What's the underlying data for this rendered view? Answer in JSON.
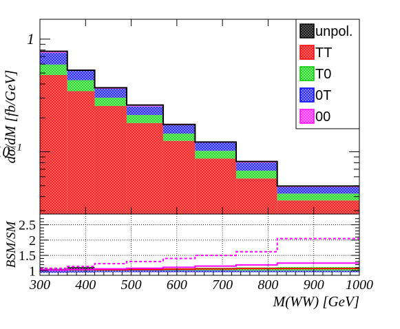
{
  "chart_data": [
    {
      "type": "bar",
      "subtype": "stacked-histogram",
      "scale": "log",
      "x_edges": [
        300,
        360,
        420,
        490,
        570,
        640,
        730,
        820,
        1000
      ],
      "ylabel": "dσ/dM [fb/GeV]",
      "ylim": [
        0.028,
        1.5
      ],
      "yticks": [
        {
          "value": 1,
          "base": "1",
          "exp": ""
        },
        {
          "value": 0.1,
          "base": "10",
          "exp": "−1"
        }
      ],
      "stack": [
        {
          "name": "TT",
          "color": "#ff0000",
          "fill": "#f17373",
          "values": [
            0.48,
            0.345,
            0.255,
            0.18,
            0.125,
            0.087,
            0.058,
            0.037
          ]
        },
        {
          "name": "T0",
          "color": "#00cc00",
          "fill": "#8ff08f",
          "values": [
            0.115,
            0.087,
            0.047,
            0.032,
            0.02,
            0.015,
            0.01,
            0.0055
          ]
        },
        {
          "name": "0T",
          "color": "#0000ff",
          "fill": "#9a9aff",
          "values": [
            0.16,
            0.09,
            0.06,
            0.04,
            0.027,
            0.018,
            0.012,
            0.006
          ]
        },
        {
          "name": "00",
          "color": "#ff00ff",
          "fill": "#ff9aff",
          "values": [
            0.02,
            0.008,
            0.008,
            0.004,
            0.003,
            0.002,
            0.0015,
            0.0011
          ]
        }
      ],
      "unpol_values": [
        0.78,
        0.53,
        0.37,
        0.26,
        0.175,
        0.122,
        0.082,
        0.0496
      ],
      "legend": {
        "position": "top-right",
        "entries": [
          {
            "label": "unpol.",
            "color": "#000000",
            "fill": "#555555"
          },
          {
            "label": "TT",
            "color": "#ff0000",
            "fill": "#f17373"
          },
          {
            "label": "T0",
            "color": "#00cc00",
            "fill": "#8ff08f"
          },
          {
            "label": "0T",
            "color": "#0000ff",
            "fill": "#9a9aff"
          },
          {
            "label": "00",
            "color": "#ff00ff",
            "fill": "#ff9aff"
          }
        ]
      }
    },
    {
      "type": "line",
      "subtype": "ratio-histogram",
      "x_edges": [
        300,
        360,
        420,
        490,
        570,
        640,
        730,
        820,
        1000
      ],
      "xlabel": "M(WW) [GeV]",
      "ylabel": "BSM/SM",
      "ylim": [
        0.85,
        2.85
      ],
      "xlim": [
        300,
        1000
      ],
      "xticks": [
        300,
        400,
        500,
        600,
        700,
        800,
        900,
        1000
      ],
      "yticks": [
        {
          "value": 1,
          "label": "1"
        },
        {
          "value": 1.5,
          "label": "1.5"
        },
        {
          "value": 2,
          "label": "2"
        },
        {
          "value": 2.5,
          "label": "2.5"
        }
      ],
      "grid": true,
      "bands": [
        {
          "name": "unpol.",
          "color": "#000000",
          "fill": "#555555",
          "low": [
            1.0,
            1.05,
            1.0,
            1.0,
            1.0,
            1.0,
            1.0,
            1.0
          ],
          "high": [
            1.06,
            1.12,
            1.07,
            1.06,
            1.06,
            1.05,
            1.05,
            1.04
          ]
        },
        {
          "name": "T0",
          "color": "#00cc00",
          "fill": "#8ff08f",
          "low": [
            0.96,
            0.99,
            0.97,
            1.0,
            1.0,
            1.0,
            1.0,
            1.0
          ],
          "high": [
            1.02,
            1.05,
            1.04,
            1.07,
            1.08,
            1.1,
            1.11,
            1.12
          ]
        },
        {
          "name": "0T",
          "color": "#0000ff",
          "fill": "#9a9aff",
          "low": [
            0.93,
            0.94,
            0.95,
            0.95,
            0.95,
            0.95,
            0.95,
            0.95
          ],
          "high": [
            1.0,
            1.0,
            1.0,
            1.01,
            1.01,
            1.01,
            1.0,
            1.0
          ]
        }
      ],
      "lines": [
        {
          "name": "TT",
          "color": "#ff0000",
          "dash": false,
          "values": [
            1.02,
            1.03,
            1.03,
            1.04,
            1.05,
            1.06,
            1.07,
            1.07
          ]
        },
        {
          "name": "00",
          "color": "#ff00ff",
          "dash": true,
          "values": [
            1.08,
            1.14,
            1.23,
            1.3,
            1.4,
            1.5,
            1.62,
            2.05
          ]
        },
        {
          "name": "00",
          "color": "#ff00ff",
          "dash": false,
          "values": [
            1.02,
            1.04,
            1.06,
            1.08,
            1.11,
            1.15,
            1.19,
            1.25
          ]
        }
      ]
    }
  ]
}
